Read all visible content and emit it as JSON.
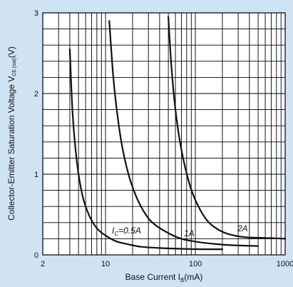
{
  "chart_data": {
    "type": "line",
    "x_scale": "log",
    "xlim": [
      2,
      1000
    ],
    "ylim": [
      0,
      3
    ],
    "grid": true,
    "xlabel": "Base Current I",
    "xlabel_sub": "B",
    "xlabel_unit": "(mA)",
    "ylabel": "Collector-Emitter Saturation Voltage V",
    "ylabel_sub": "CE (sat)",
    "ylabel_unit": "(V)",
    "x_tick_labels": [
      {
        "value": 2,
        "label": "2"
      },
      {
        "value": 10,
        "label": "10"
      },
      {
        "value": 100,
        "label": "100"
      },
      {
        "value": 1000,
        "label": "1000"
      }
    ],
    "y_tick_labels": [
      {
        "value": 0,
        "label": "0"
      },
      {
        "value": 1,
        "label": "1"
      },
      {
        "value": 2,
        "label": "2"
      },
      {
        "value": 3,
        "label": "3"
      }
    ],
    "series": [
      {
        "name": "Ic=0.5A",
        "label_prefix": "I",
        "label_sub": "C",
        "label_text": "=0.5A",
        "x": [
          4,
          4.3,
          4.8,
          5.5,
          6.5,
          8,
          10,
          13,
          18,
          25,
          40,
          70,
          120,
          200
        ],
        "y": [
          2.55,
          1.75,
          1.15,
          0.75,
          0.5,
          0.33,
          0.24,
          0.17,
          0.13,
          0.1,
          0.085,
          0.075,
          0.07,
          0.07
        ]
      },
      {
        "name": "1A",
        "label_text": "1A",
        "x": [
          11,
          12,
          13,
          15,
          18,
          22,
          28,
          35,
          50,
          70,
          100,
          150,
          250,
          500
        ],
        "y": [
          2.9,
          2.3,
          1.9,
          1.4,
          1.0,
          0.72,
          0.5,
          0.38,
          0.27,
          0.2,
          0.165,
          0.14,
          0.12,
          0.11
        ]
      },
      {
        "name": "2A",
        "label_text": "2A",
        "x": [
          50,
          54,
          60,
          70,
          85,
          100,
          130,
          170,
          230,
          350,
          600,
          1000
        ],
        "y": [
          2.95,
          2.35,
          1.8,
          1.3,
          0.9,
          0.68,
          0.45,
          0.33,
          0.26,
          0.22,
          0.21,
          0.2
        ]
      }
    ]
  }
}
